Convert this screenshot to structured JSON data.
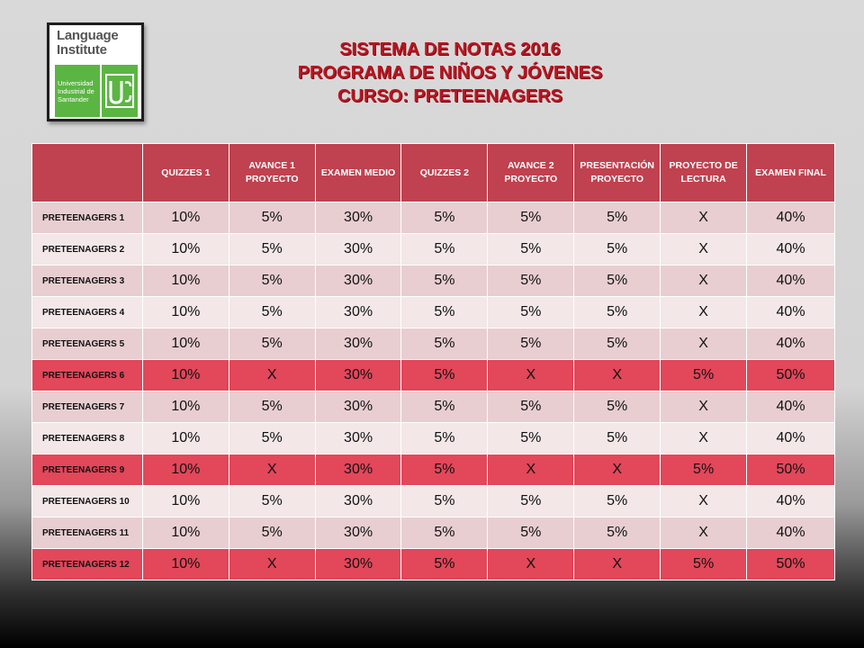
{
  "logo": {
    "line1": "Language",
    "line2": "Institute",
    "university": "Universidad Industrial de Santander",
    "seal": "UIS"
  },
  "title": {
    "line1": "SISTEMA DE NOTAS 2016",
    "line2": "PROGRAMA DE NIÑOS Y JÓVENES",
    "line3": "CURSO: PRETEENAGERS"
  },
  "colors": {
    "header": "#c0414f",
    "row_dark": "#e8ced1",
    "row_light": "#f3e7e8",
    "row_highlight": "#e2475a",
    "title": "#c8102e"
  },
  "table": {
    "headers": [
      "",
      "QUIZZES 1",
      "AVANCE 1 PROYECTO",
      "EXAMEN MEDIO",
      "QUIZZES 2",
      "AVANCE 2 PROYECTO",
      "PRESENTACIÓN PROYECTO",
      "PROYECTO DE LECTURA",
      "EXAMEN FINAL"
    ],
    "rows": [
      {
        "label": "PRETEENAGERS 1",
        "cells": [
          "10%",
          "5%",
          "30%",
          "5%",
          "5%",
          "5%",
          "X",
          "40%"
        ]
      },
      {
        "label": "PRETEENAGERS 2",
        "cells": [
          "10%",
          "5%",
          "30%",
          "5%",
          "5%",
          "5%",
          "X",
          "40%"
        ]
      },
      {
        "label": "PRETEENAGERS 3",
        "cells": [
          "10%",
          "5%",
          "30%",
          "5%",
          "5%",
          "5%",
          "X",
          "40%"
        ]
      },
      {
        "label": "PRETEENAGERS 4",
        "cells": [
          "10%",
          "5%",
          "30%",
          "5%",
          "5%",
          "5%",
          "X",
          "40%"
        ]
      },
      {
        "label": "PRETEENAGERS 5",
        "cells": [
          "10%",
          "5%",
          "30%",
          "5%",
          "5%",
          "5%",
          "X",
          "40%"
        ]
      },
      {
        "label": "PRETEENAGERS 6",
        "cells": [
          "10%",
          "X",
          "30%",
          "5%",
          "X",
          "X",
          "5%",
          "50%"
        ]
      },
      {
        "label": "PRETEENAGERS 7",
        "cells": [
          "10%",
          "5%",
          "30%",
          "5%",
          "5%",
          "5%",
          "X",
          "40%"
        ]
      },
      {
        "label": "PRETEENAGERS 8",
        "cells": [
          "10%",
          "5%",
          "30%",
          "5%",
          "5%",
          "5%",
          "X",
          "40%"
        ]
      },
      {
        "label": "PRETEENAGERS 9",
        "cells": [
          "10%",
          "X",
          "30%",
          "5%",
          "X",
          "X",
          "5%",
          "50%"
        ]
      },
      {
        "label": "PRETEENAGERS 10",
        "cells": [
          "10%",
          "5%",
          "30%",
          "5%",
          "5%",
          "5%",
          "X",
          "40%"
        ]
      },
      {
        "label": "PRETEENAGERS 11",
        "cells": [
          "10%",
          "5%",
          "30%",
          "5%",
          "5%",
          "5%",
          "X",
          "40%"
        ]
      },
      {
        "label": "PRETEENAGERS 12",
        "cells": [
          "10%",
          "X",
          "30%",
          "5%",
          "X",
          "X",
          "5%",
          "50%"
        ]
      }
    ]
  }
}
